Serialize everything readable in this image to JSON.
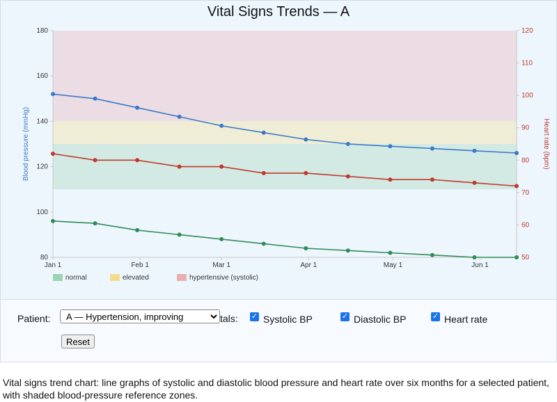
{
  "chart": {
    "title": "Vital Signs Trends — A",
    "legend": [
      {
        "label": "normal",
        "color": "#9ed3b2"
      },
      {
        "label": "elevated",
        "color": "#f2dc8c"
      },
      {
        "label": "hypertensive (systolic)",
        "color": "#e6b0b3"
      }
    ]
  },
  "controls": {
    "patient_label": "Patient:",
    "patient_selected": "A — Hypertension, improving",
    "vitals_label": "tals:",
    "checkboxes": [
      {
        "label": "Systolic BP",
        "checked": true
      },
      {
        "label": "Diastolic BP",
        "checked": true
      },
      {
        "label": "Heart rate",
        "checked": true
      }
    ],
    "reset_label": "Reset"
  },
  "caption": "Vital signs trend chart: line graphs of systolic and diastolic blood pressure and heart rate over six months for a selected patient, with shaded blood-pressure reference zones.",
  "chart_data": {
    "type": "line",
    "title": "Vital Signs Trends — A",
    "x": [
      "2024-01-01",
      "2024-01-16",
      "2024-01-31",
      "2024-02-15",
      "2024-03-01",
      "2024-03-16",
      "2024-03-31",
      "2024-04-15",
      "2024-04-30",
      "2024-05-15",
      "2024-05-30",
      "2024-06-14"
    ],
    "xticks": [
      "Jan 1",
      "Feb 1",
      "Mar 1",
      "Apr 1",
      "May 1",
      "Jun 1"
    ],
    "xtick_dates": [
      "2024-01-01",
      "2024-02-01",
      "2024-03-01",
      "2024-04-01",
      "2024-05-01",
      "2024-06-01"
    ],
    "xlim": [
      "2024-01-01",
      "2024-06-14"
    ],
    "ylabel": "Blood pressure (mmHg)",
    "ylim": [
      80,
      180
    ],
    "yticks": [
      80,
      100,
      120,
      140,
      160,
      180
    ],
    "y2label": "Heart rate (bpm)",
    "y2lim": [
      50,
      120
    ],
    "y2ticks": [
      50,
      60,
      70,
      80,
      90,
      100,
      110,
      120
    ],
    "zones": [
      {
        "label": "normal",
        "from": 110,
        "to": 130,
        "color": "#9ed3b2"
      },
      {
        "label": "elevated",
        "from": 130,
        "to": 140,
        "color": "#f2dc8c"
      },
      {
        "label": "hypertensive (systolic)",
        "from": 140,
        "to": 180,
        "color": "#e6b0b3"
      }
    ],
    "series": [
      {
        "key": "systolic",
        "axis": "left",
        "color": "#3a78c9",
        "values": [
          152,
          150,
          146,
          142,
          138,
          135,
          132,
          130,
          129,
          128,
          127,
          126
        ]
      },
      {
        "key": "diastolic",
        "axis": "left",
        "color": "#2e8b57",
        "values": [
          96,
          95,
          92,
          90,
          88,
          86,
          84,
          83,
          82,
          81,
          80,
          80
        ]
      },
      {
        "key": "heart_rate",
        "axis": "right",
        "color": "#c0392b",
        "values": [
          82,
          80,
          80,
          78,
          78,
          76,
          76,
          75,
          74,
          74,
          73,
          72
        ]
      }
    ],
    "grid": false,
    "legend_position": "bottom-left"
  }
}
